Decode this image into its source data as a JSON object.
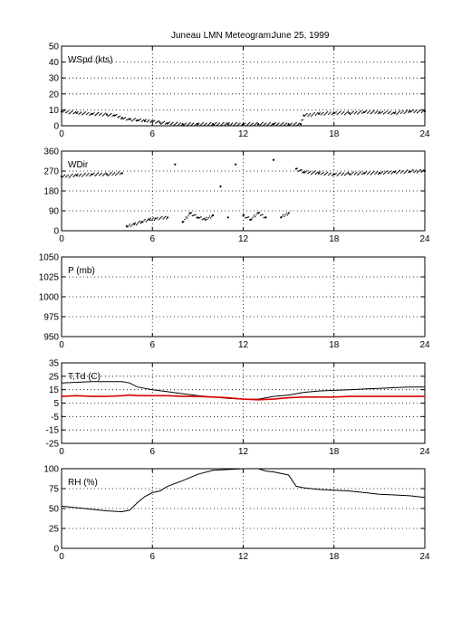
{
  "header": {
    "title": "Juneau LMN Meteogram:",
    "date": "June 25, 1999"
  },
  "chart_data": [
    {
      "type": "scatter",
      "label": "WSpd (kts)",
      "xlim": [
        0,
        24
      ],
      "xticks": [
        "0",
        "6",
        "12",
        "18",
        "24"
      ],
      "ylim": [
        0,
        50
      ],
      "yticks": [
        "0",
        "10",
        "20",
        "30",
        "40",
        "50"
      ],
      "grid": true,
      "series": [
        {
          "color": "#000000",
          "x": [
            0,
            1,
            2,
            3,
            3.5,
            4,
            4.5,
            5,
            5.5,
            6,
            6.5,
            7,
            8,
            9,
            10,
            11,
            12,
            13,
            14,
            15,
            15.8,
            16,
            17,
            18,
            19,
            20,
            21,
            22,
            23,
            24
          ],
          "y": [
            9,
            8,
            7.5,
            7,
            6.5,
            5,
            4,
            3.5,
            3,
            3,
            2,
            1.5,
            1,
            1,
            1,
            1,
            1,
            1,
            1,
            1,
            1,
            6.5,
            7.5,
            8,
            8,
            8.5,
            8.5,
            8,
            9,
            9
          ]
        }
      ]
    },
    {
      "type": "scatter",
      "label": "WDir",
      "xlim": [
        0,
        24
      ],
      "xticks": [
        "0",
        "6",
        "12",
        "18",
        "24"
      ],
      "ylim": [
        0,
        360
      ],
      "yticks": [
        "0",
        "90",
        "180",
        "270",
        "360"
      ],
      "grid": true,
      "series": [
        {
          "color": "#000000",
          "x": [
            0,
            1,
            2,
            3,
            4,
            4.3,
            4.8,
            5.3,
            5.8,
            6.2,
            7,
            7.5,
            8,
            8.5,
            9,
            9.5,
            10,
            10.5,
            11,
            11.5,
            12,
            12.5,
            13,
            13.5,
            14,
            14.5,
            15,
            15.5,
            16,
            17,
            18,
            19,
            20,
            21,
            22,
            23,
            24
          ],
          "y": [
            245,
            250,
            255,
            255,
            260,
            20,
            30,
            40,
            50,
            55,
            60,
            300,
            40,
            80,
            60,
            50,
            70,
            200,
            60,
            300,
            70,
            50,
            80,
            60,
            320,
            60,
            80,
            280,
            265,
            260,
            255,
            258,
            260,
            262,
            265,
            268,
            270
          ]
        }
      ]
    },
    {
      "type": "line",
      "label": "P (mb)",
      "xlim": [
        0,
        24
      ],
      "xticks": [
        "0",
        "6",
        "12",
        "18",
        "24"
      ],
      "ylim": [
        950,
        1050
      ],
      "yticks": [
        "950",
        "975",
        "1000",
        "1025",
        "1050"
      ],
      "grid": true,
      "series": []
    },
    {
      "type": "line",
      "label": "T,Td (C)",
      "xlim": [
        0,
        24
      ],
      "xticks": [
        "0",
        "6",
        "12",
        "18",
        "24"
      ],
      "ylim": [
        -25,
        35
      ],
      "yticks": [
        "-25",
        "-15",
        "-5",
        "5",
        "15",
        "25",
        "35"
      ],
      "grid": true,
      "series": [
        {
          "color": "#000000",
          "x": [
            0,
            1,
            2,
            3,
            4,
            4.5,
            5,
            6,
            7,
            8,
            9,
            10,
            11,
            12,
            13,
            13.5,
            14,
            15,
            15.5,
            16,
            17,
            18,
            19,
            20,
            21,
            22,
            23,
            24
          ],
          "y": [
            20,
            20.5,
            21,
            21,
            21,
            20,
            17,
            15,
            13.5,
            12,
            10.5,
            9.5,
            8.5,
            8,
            8,
            9,
            10,
            11,
            12,
            13,
            14,
            14.5,
            15,
            15.5,
            16,
            16.5,
            17,
            17
          ]
        },
        {
          "color": "#dd0000",
          "x": [
            0,
            1,
            2,
            3,
            4,
            4.5,
            5,
            6,
            7,
            8,
            9,
            10,
            11,
            12,
            13,
            14,
            15,
            16,
            17,
            18,
            19,
            20,
            21,
            22,
            23,
            24
          ],
          "y": [
            10,
            10.5,
            10,
            10,
            10.5,
            11,
            10.5,
            10.5,
            10.5,
            10,
            10,
            9.5,
            9,
            8,
            7.5,
            8,
            9,
            9.5,
            9.5,
            9.5,
            10,
            10,
            10,
            10,
            10,
            10
          ]
        }
      ]
    },
    {
      "type": "line",
      "label": "RH (%)",
      "xlim": [
        0,
        24
      ],
      "xticks": [
        "0",
        "6",
        "12",
        "18",
        "24"
      ],
      "ylim": [
        0,
        100
      ],
      "yticks": [
        "0",
        "25",
        "50",
        "75",
        "100"
      ],
      "grid": true,
      "series": [
        {
          "color": "#000000",
          "x": [
            0,
            1,
            2,
            3,
            4,
            4.5,
            5,
            5.5,
            6,
            6.5,
            7,
            8,
            9,
            10,
            11,
            12,
            13,
            13.5,
            14,
            15,
            15.5,
            16,
            17,
            18,
            19,
            20,
            21,
            22,
            23,
            24
          ],
          "y": [
            53,
            51,
            49,
            47,
            46,
            48,
            57,
            65,
            70,
            72,
            78,
            85,
            93,
            98,
            99,
            100,
            100,
            97,
            96,
            92,
            78,
            76,
            74,
            73,
            72,
            70,
            68,
            67,
            66,
            64
          ]
        }
      ]
    }
  ]
}
